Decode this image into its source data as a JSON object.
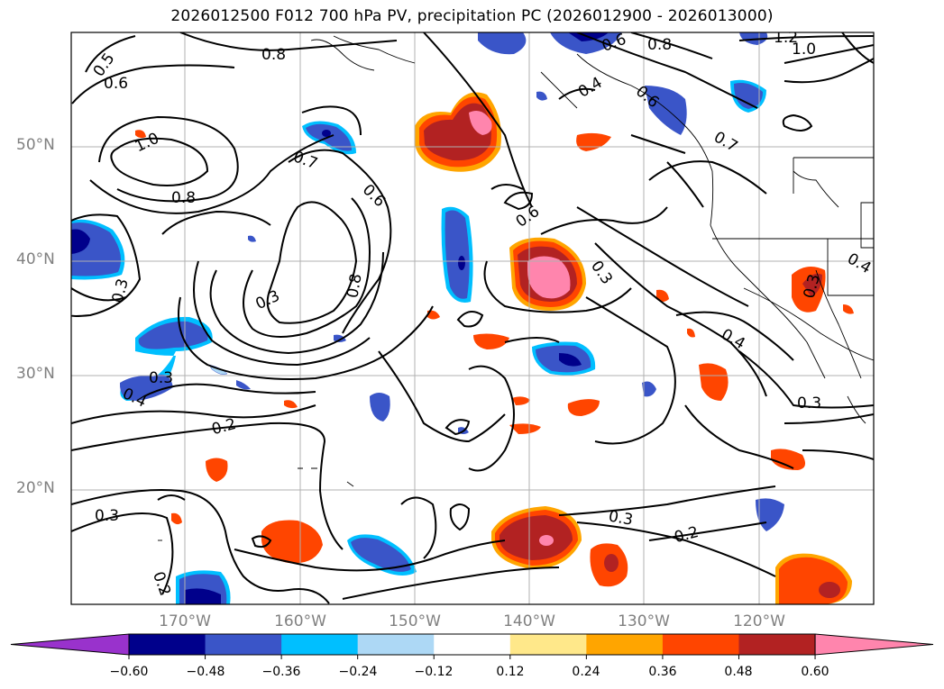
{
  "title": "2026012500 F012 700 hPa PV, precipitation PC (2026012900 - 2026013000)",
  "lat_labels": [
    "50°N",
    "40°N",
    "30°N",
    "20°N"
  ],
  "lon_labels": [
    "170°W",
    "160°W",
    "150°W",
    "140°W",
    "130°W",
    "120°W"
  ],
  "pv_labels": [
    "0.5",
    "0.6",
    "0.8",
    "0.8",
    "1.2",
    "1.0",
    "1.0",
    "0.8",
    "0.7",
    "0.6",
    "0.4",
    "0.6",
    "0.7",
    "0.6",
    "0.8",
    "0.3",
    "0.3",
    "0.3",
    "0.4",
    "0.2",
    "0.3",
    "0.3",
    "0.2",
    "0.2",
    "0.4",
    "0.3",
    "0.3",
    "0.4",
    "0.3",
    "0.6"
  ],
  "colorbar": {
    "ticks": [
      "−0.60",
      "−0.48",
      "−0.36",
      "−0.24",
      "−0.12",
      "0.12",
      "0.24",
      "0.36",
      "0.48",
      "0.60"
    ],
    "colors": [
      "#9932cc",
      "#00008b",
      "#3a55c8",
      "#00bfff",
      "#add8f5",
      "#ffffff",
      "#ffe88a",
      "#ffa500",
      "#ff4500",
      "#b22222",
      "#ff85ad"
    ]
  }
}
